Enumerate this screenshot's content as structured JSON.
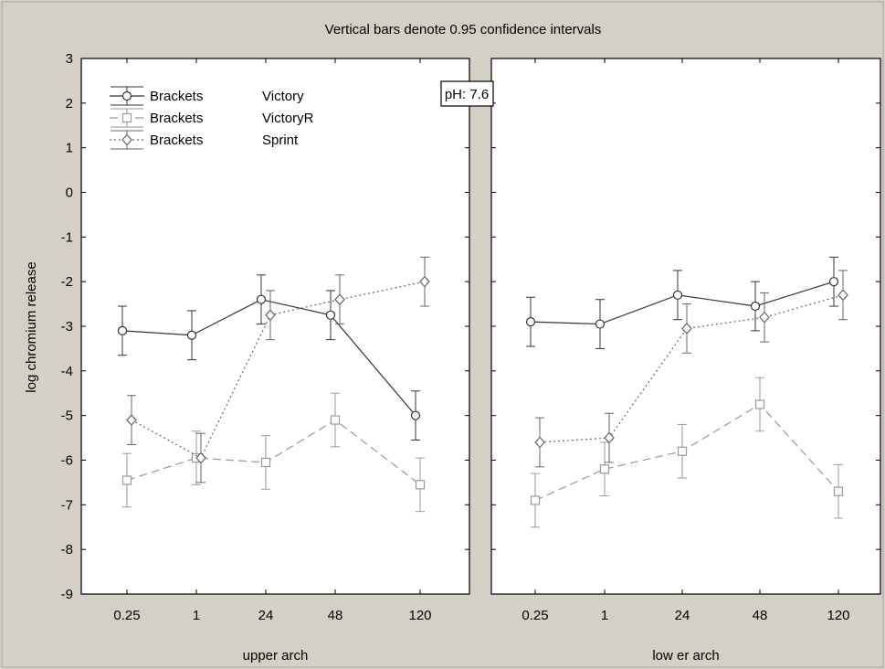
{
  "chart_data": {
    "type": "line",
    "title": "Vertical bars denote 0.95 confidence intervals",
    "ylabel": "log chromium release",
    "ylim": [
      -9,
      3
    ],
    "yticks": [
      3,
      2,
      1,
      0,
      -1,
      -2,
      -3,
      -4,
      -5,
      -6,
      -7,
      -8,
      -9
    ],
    "categories": [
      "0.25",
      "1",
      "24",
      "48",
      "120"
    ],
    "annotation": "pH: 7.6",
    "legend_position": "top-left",
    "legend": [
      {
        "col1": "Brackets",
        "col2": "Victory",
        "series": "Victory"
      },
      {
        "col1": "Brackets",
        "col2": "VictoryR",
        "series": "VictoryR"
      },
      {
        "col1": "Brackets",
        "col2": "Sprint",
        "series": "Sprint"
      }
    ],
    "series_styles": [
      {
        "name": "Victory",
        "color": "#333333",
        "dash": "",
        "marker": "circle"
      },
      {
        "name": "VictoryR",
        "color": "#999999",
        "dash": "9,5",
        "marker": "square"
      },
      {
        "name": "Sprint",
        "color": "#666666",
        "dash": "2,3",
        "marker": "diamond"
      }
    ],
    "panels": [
      {
        "xlabel": "upper arch",
        "series": [
          {
            "name": "Victory",
            "values": [
              -3.1,
              -3.2,
              -2.4,
              -2.75,
              -5.0
            ],
            "ci": [
              0.55,
              0.55,
              0.55,
              0.55,
              0.55
            ]
          },
          {
            "name": "VictoryR",
            "values": [
              -6.45,
              -5.95,
              -6.05,
              -5.1,
              -6.55
            ],
            "ci": [
              0.6,
              0.6,
              0.6,
              0.6,
              0.6
            ]
          },
          {
            "name": "Sprint",
            "values": [
              -5.1,
              -5.95,
              -2.75,
              -2.4,
              -2.0
            ],
            "ci": [
              0.55,
              0.55,
              0.55,
              0.55,
              0.55
            ]
          }
        ]
      },
      {
        "xlabel": "low er arch",
        "series": [
          {
            "name": "Victory",
            "values": [
              -2.9,
              -2.95,
              -2.3,
              -2.55,
              -2.0
            ],
            "ci": [
              0.55,
              0.55,
              0.55,
              0.55,
              0.55
            ]
          },
          {
            "name": "VictoryR",
            "values": [
              -6.9,
              -6.2,
              -5.8,
              -4.75,
              -6.7
            ],
            "ci": [
              0.6,
              0.6,
              0.6,
              0.6,
              0.6
            ]
          },
          {
            "name": "Sprint",
            "values": [
              -5.6,
              -5.5,
              -3.05,
              -2.8,
              -2.3
            ],
            "ci": [
              0.55,
              0.55,
              0.55,
              0.55,
              0.55
            ]
          }
        ]
      }
    ]
  }
}
